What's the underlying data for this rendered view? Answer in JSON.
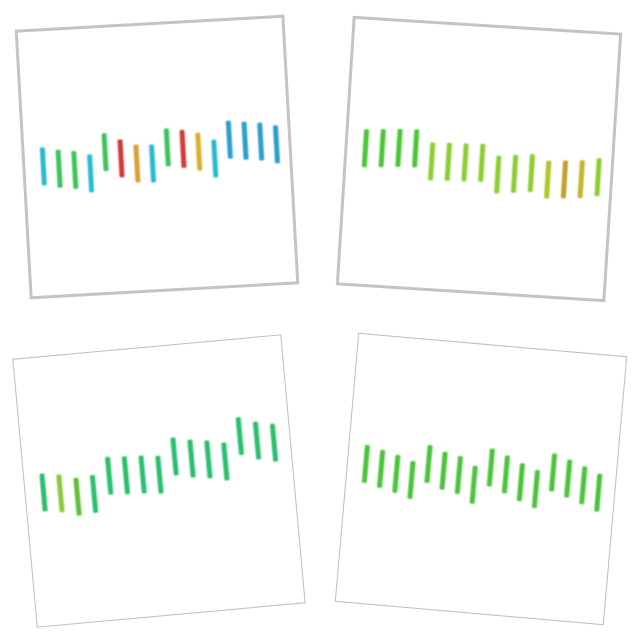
{
  "panels": [
    {
      "id": "top-left",
      "border": "thick",
      "colors": [
        "#2bbad0",
        "#3cc45a",
        "#3cc45a",
        "#2bbad0",
        "#3cc45a",
        "#d23a34",
        "#d9a034",
        "#2bbad0",
        "#3cc45a",
        "#d23a34",
        "#d9b02c",
        "#2bbad0",
        "#2a9fd0",
        "#2a9fd0",
        "#2a9fd0",
        "#2a9fd0"
      ],
      "levels": [
        0.0,
        0.55,
        0.9,
        1.6,
        -1.8,
        -0.6,
        0.4,
        0.55,
        -2.0,
        -1.6,
        -1.0,
        0.3,
        -2.7,
        -2.4,
        -2.1,
        -1.5
      ]
    },
    {
      "id": "top-right",
      "border": "thick",
      "colors": [
        "#48c634",
        "#48c634",
        "#48c634",
        "#48c634",
        "#8ccd30",
        "#8ccd30",
        "#8ccd30",
        "#8ccd30",
        "#8ccd30",
        "#8ccd30",
        "#8ccd30",
        "#b2c427",
        "#c49e2a",
        "#c4b42a",
        "#8ccd30"
      ],
      "levels": [
        -1.1,
        -1.3,
        -1.5,
        -1.6,
        0.4,
        0.3,
        0.2,
        0.1,
        1.9,
        1.6,
        1.3,
        2.2,
        2.0,
        1.8,
        1.3
      ]
    },
    {
      "id": "bottom-left",
      "border": "thin",
      "colors": [
        "#2cbf6e",
        "#8bc83c",
        "#5ebf3a",
        "#2cbf6e",
        "#2cbf6e",
        "#2cbf6e",
        "#2cbf6e",
        "#2cbf6e",
        "#2cbf6e",
        "#2cbf6e",
        "#2cbf6e",
        "#2cbf6e",
        "#2cbf6e",
        "#2cbf6e",
        "#2cbf6e"
      ],
      "levels": [
        0.0,
        0.4,
        1.2,
        1.0,
        -1.8,
        -1.6,
        -1.5,
        -1.2,
        -4.0,
        -3.4,
        -3.0,
        -2.4,
        -6.4,
        -5.4,
        -4.8
      ]
    },
    {
      "id": "bottom-right",
      "border": "thin",
      "colors": [
        "#4ac43a",
        "#4ac43a",
        "#4ac43a",
        "#4ac43a",
        "#4ac43a",
        "#4ac43a",
        "#4ac43a",
        "#4ac43a",
        "#4ac43a",
        "#4ac43a",
        "#4ac43a",
        "#4ac43a",
        "#4ac43a",
        "#4ac43a",
        "#4ac43a",
        "#4ac43a"
      ],
      "levels": [
        -1.0,
        -0.4,
        0.2,
        1.0,
        -1.9,
        -1.0,
        -0.5,
        0.9,
        -2.2,
        -1.3,
        -0.2,
        0.7,
        -2.3,
        -1.5,
        -0.6,
        0.4
      ]
    }
  ]
}
